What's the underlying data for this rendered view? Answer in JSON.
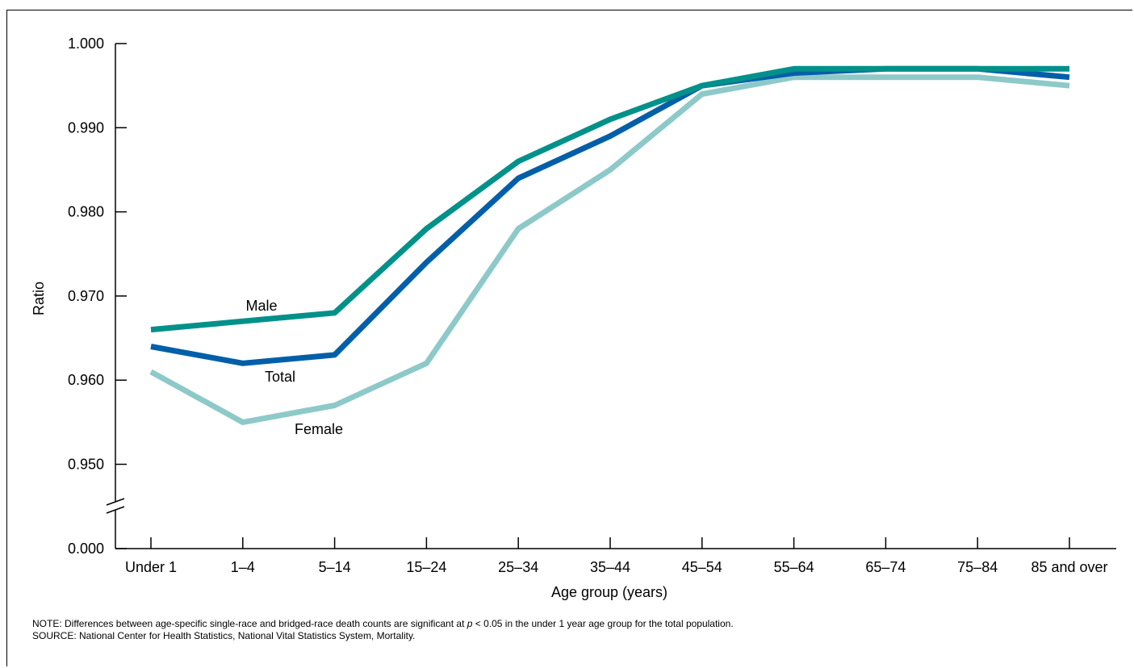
{
  "chart_data": {
    "type": "line",
    "xlabel": "Age group (years)",
    "ylabel": "Ratio",
    "categories": [
      "Under 1",
      "1–4",
      "5–14",
      "15–24",
      "25–34",
      "35–44",
      "45–54",
      "55–64",
      "65–74",
      "75–84",
      "85 and over"
    ],
    "y_ticks": [
      "1.000",
      "0.990",
      "0.980",
      "0.970",
      "0.960",
      "0.950",
      "0.000"
    ],
    "ylim": [
      0.945,
      1.0
    ],
    "y_axis_break": true,
    "grid": false,
    "series": [
      {
        "name": "Male",
        "color": "#00918a",
        "values": [
          0.966,
          0.967,
          0.968,
          0.978,
          0.986,
          0.991,
          0.995,
          0.997,
          0.997,
          0.997,
          0.997
        ]
      },
      {
        "name": "Total",
        "color": "#005fa8",
        "values": [
          0.964,
          0.962,
          0.963,
          0.974,
          0.984,
          0.989,
          0.995,
          0.9965,
          0.997,
          0.997,
          0.996
        ]
      },
      {
        "name": "Female",
        "color": "#8ec9c9",
        "values": [
          0.961,
          0.955,
          0.957,
          0.962,
          0.978,
          0.985,
          0.994,
          0.996,
          0.996,
          0.996,
          0.995
        ]
      }
    ]
  },
  "notes": {
    "note_prefix": "NOTE: Differences between age-specific single-race and bridged-race death counts are significant at ",
    "note_p": "p",
    "note_suffix": " < 0.05 in the under 1 year age group for the total population.",
    "source": "SOURCE: National Center for Health Statistics, National Vital Statistics System, Mortality."
  }
}
